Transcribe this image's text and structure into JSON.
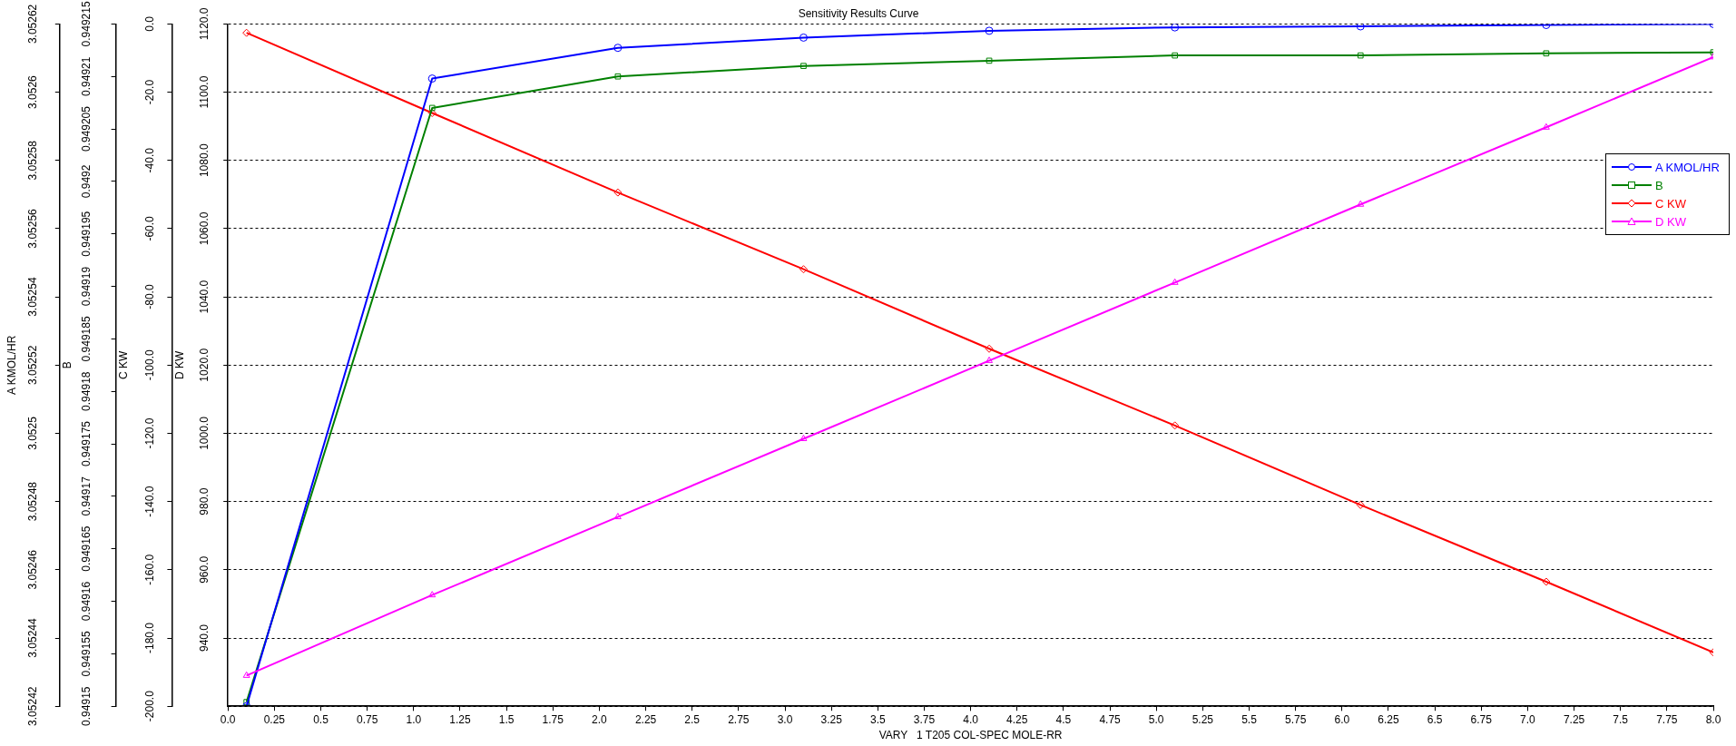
{
  "chart_data": [
    {
      "type": "line",
      "title": "Sensitivity Results Curve",
      "xlabel": "VARY   1 T205 COL-SPEC MOLE-RR",
      "ylabel": "A KMOL/HR",
      "y2label": "B",
      "y3label": "C KW",
      "x": [
        0.1,
        1.1,
        2.1,
        3.1,
        4.1,
        5.1,
        6.1,
        7.1,
        8.0
      ],
      "series": [
        {
          "name": "A KMOL/HR",
          "color": "#0000ff",
          "marker": "circle",
          "values": [
            3.05242,
            3.052604,
            3.052613,
            3.052616,
            3.052618,
            3.052619,
            3.0526193,
            3.0526197,
            3.05262
          ]
        },
        {
          "name": "B",
          "color": "#008000",
          "marker": "square",
          "axis": "y2",
          "values": [
            0.9491504,
            0.949207,
            0.94921,
            0.949211,
            0.9492115,
            0.949212,
            0.949212,
            0.9492122,
            0.9492123
          ]
        },
        {
          "name": "C KW",
          "color": "#ff0000",
          "marker": "diamond",
          "axis": "y3",
          "values": [
            -2.6,
            -26.1,
            -49.4,
            -71.9,
            -95.2,
            -117.7,
            -141,
            -163.5,
            -184.2
          ]
        }
      ],
      "xlim": [
        0,
        8
      ],
      "xticks": [
        {
          "value": 0,
          "label": "0.0"
        },
        0.25,
        0.5,
        0.75,
        {
          "value": 1,
          "label": "1.0"
        },
        1.25,
        1.5,
        1.75,
        {
          "value": 2,
          "label": "2.0"
        },
        2.25,
        2.5,
        2.75,
        {
          "value": 3,
          "label": "3.0"
        },
        3.25,
        3.5,
        3.75,
        {
          "value": 4,
          "label": "4.0"
        },
        4.25,
        4.5,
        4.75,
        {
          "value": 5,
          "label": "5.0"
        },
        5.25,
        5.5,
        5.75,
        {
          "value": 6,
          "label": "6.0"
        },
        6.25,
        6.5,
        6.75,
        {
          "value": 7,
          "label": "7.0"
        },
        7.25,
        7.5,
        7.75,
        {
          "value": 8,
          "label": "8.0"
        }
      ],
      "ylim": [
        3.05242,
        3.05262
      ],
      "yticks": [
        3.05242,
        3.05244,
        3.05246,
        3.05248,
        3.0525,
        3.05252,
        3.05254,
        3.05256,
        3.05258,
        3.0526,
        3.05262
      ],
      "y2lim": [
        0.94915,
        0.949215
      ],
      "y2ticks": [
        0.94915,
        0.949155,
        0.94916,
        0.949165,
        0.94917,
        0.949175,
        0.94918,
        0.949185,
        0.94919,
        0.949195,
        0.9492,
        0.949205,
        0.94921,
        0.949215
      ],
      "y3lim": [
        -200,
        0
      ],
      "y3ticks": [
        {
          "value": -200,
          "label": "-200.0"
        },
        {
          "value": -180,
          "label": "-180.0"
        },
        {
          "value": -160,
          "label": "-160.0"
        },
        {
          "value": -140,
          "label": "-140.0"
        },
        {
          "value": -120,
          "label": "-120.0"
        },
        {
          "value": -100,
          "label": "-100.0"
        },
        {
          "value": -80,
          "label": "-80.0"
        },
        {
          "value": -60,
          "label": "-60.0"
        },
        {
          "value": -40,
          "label": "-40.0"
        },
        {
          "value": -20,
          "label": "-20.0"
        },
        {
          "value": 0,
          "label": "0.0"
        }
      ],
      "grid": "y",
      "legend": "right",
      "line_style": "solid"
    },
    {
      "type": "line",
      "ylabel": "D KW",
      "x": [
        0.1,
        1.1,
        2.1,
        3.1,
        4.1,
        5.1,
        6.1,
        7.1,
        8.0
      ],
      "series": [
        {
          "name": "D KW",
          "color": "#ff00ff",
          "marker": "triangle",
          "values": [
            929,
            952.6,
            975.5,
            998.4,
            1021.3,
            1044.2,
            1067.1,
            1089.7,
            1110.3
          ]
        }
      ],
      "xlim": [
        0,
        8
      ],
      "ylim": [
        920,
        1120
      ],
      "yticks": [
        {
          "value": 940,
          "label": "940.0"
        },
        {
          "value": 960,
          "label": "960.0"
        },
        {
          "value": 980,
          "label": "980.0"
        },
        {
          "value": 1000,
          "label": "1000.0"
        },
        {
          "value": 1020,
          "label": "1020.0"
        },
        {
          "value": 1040,
          "label": "1040.0"
        },
        {
          "value": 1060,
          "label": "1060.0"
        },
        {
          "value": 1080,
          "label": "1080.0"
        },
        {
          "value": 1100,
          "label": "1100.0"
        },
        {
          "value": 1120,
          "label": "1120.0"
        }
      ],
      "tick_labels": "y",
      "legend": "right",
      "line_style": "solid"
    }
  ]
}
